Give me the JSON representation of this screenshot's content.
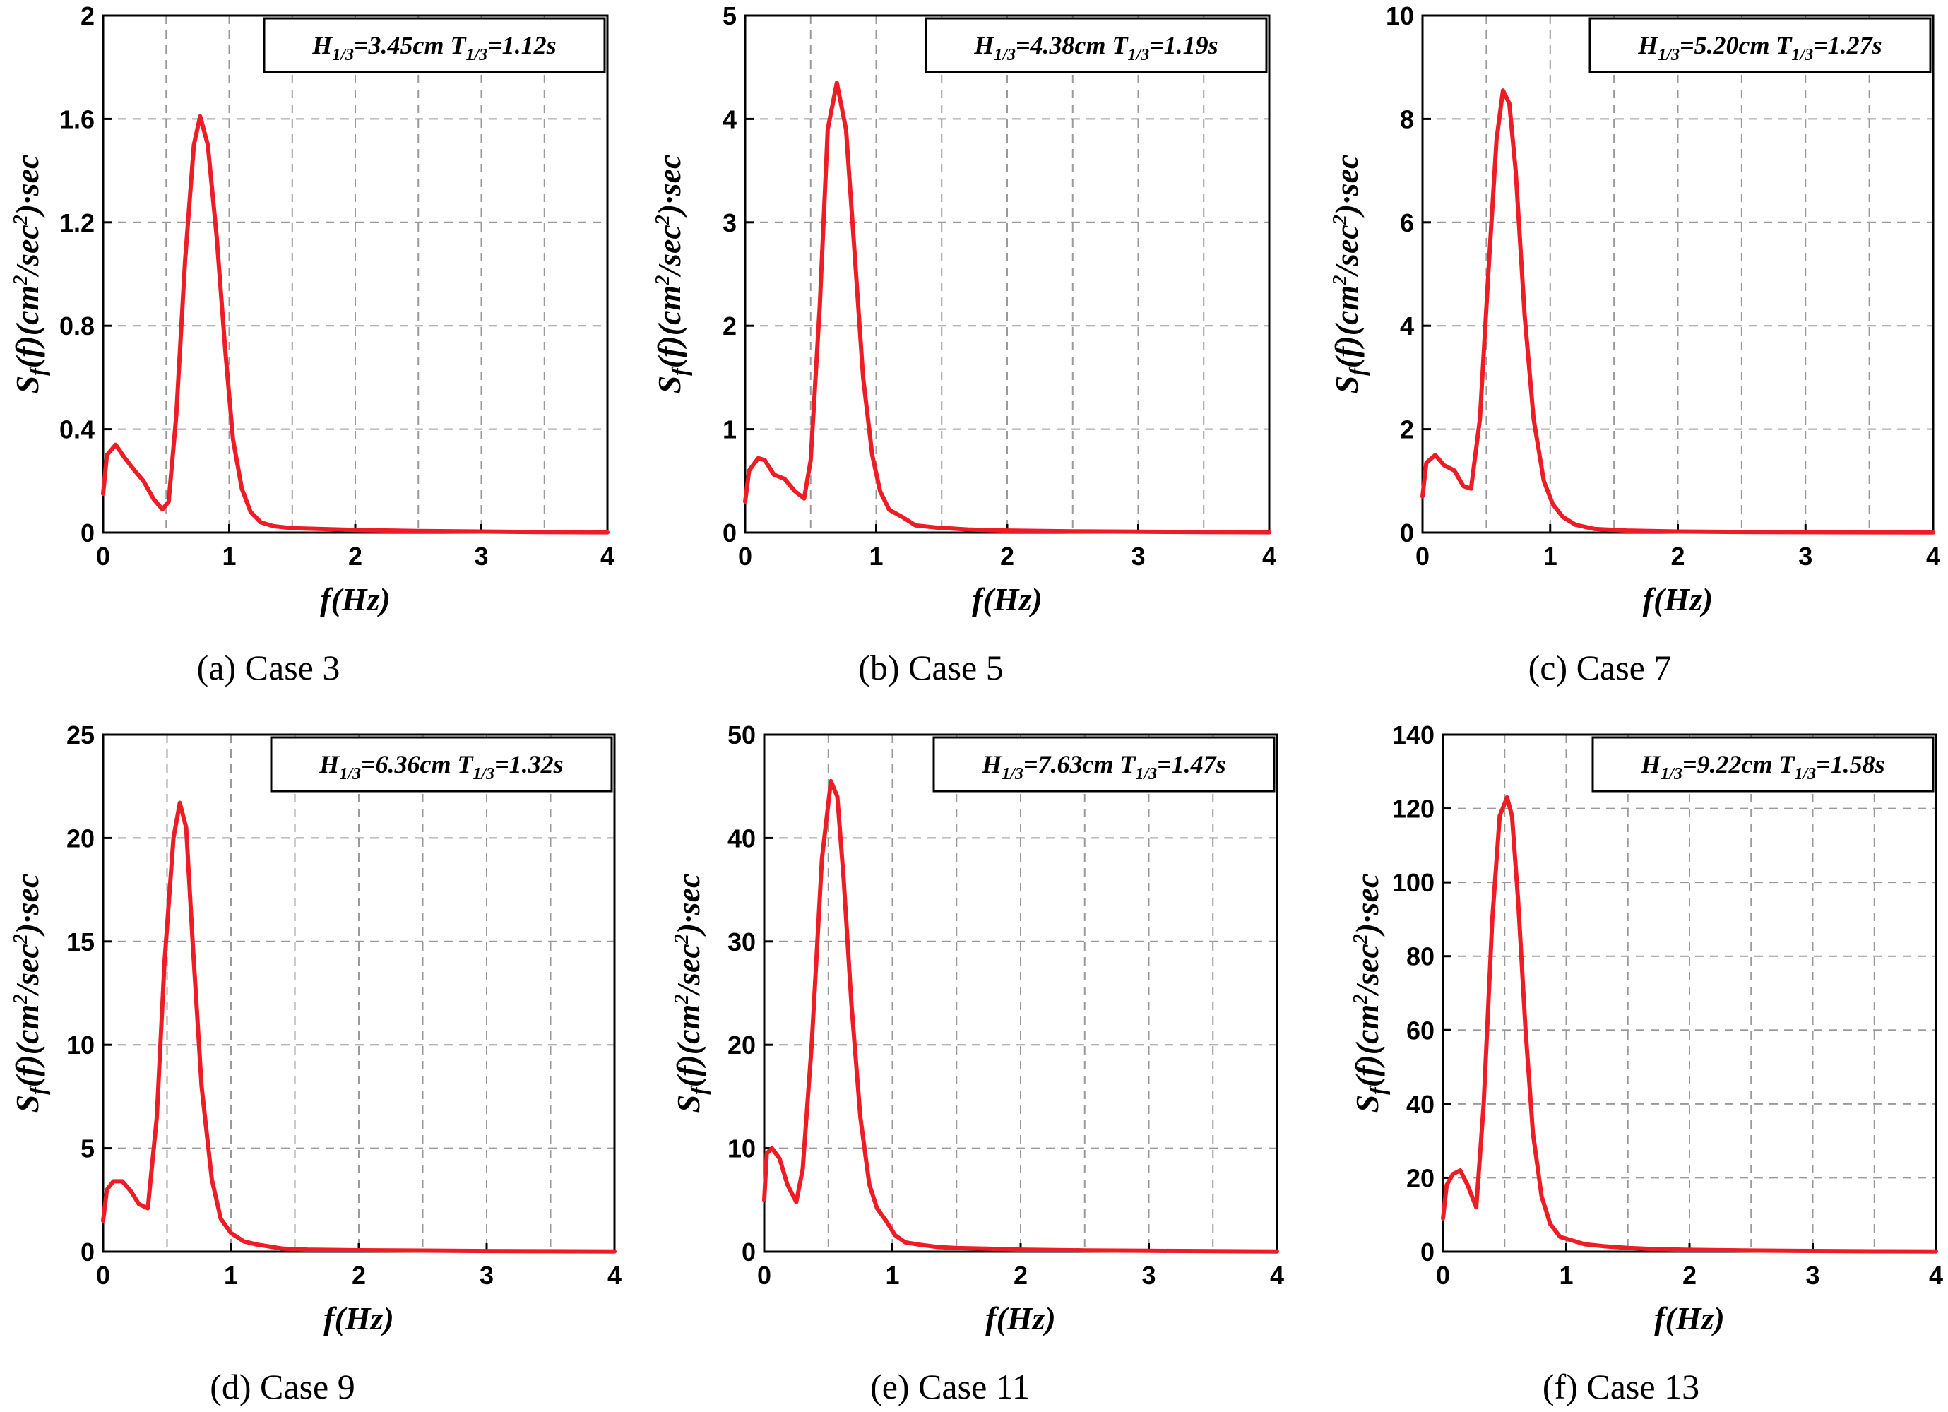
{
  "figure": {
    "series_color": "#ee1c24",
    "xlabel": "f(Hz)",
    "ylabel": "Sf(f)(cm2/sec2)·sec",
    "ylabel_parts": {
      "S": "S",
      "sub": "f",
      "mid": "(f)(cm",
      "sup1": "2",
      "mid2": "/sec",
      "sup2": "2",
      "tail": ")·sec"
    }
  },
  "chart_data": [
    {
      "type": "line",
      "caption": "(a)  Case 3",
      "annotation": {
        "H": "H",
        "Hsub": "1/3",
        "Hval": "=3.45cm ",
        "T": "T",
        "Tsub": "1/3",
        "Tval": "=1.12s"
      },
      "xlabel": "f(Hz)",
      "ylabel": "Sf(f)(cm2/sec2)·sec",
      "xlim": [
        0,
        4
      ],
      "ylim": [
        0,
        2
      ],
      "xticks": [
        0,
        1,
        2,
        3,
        4
      ],
      "xtick_labels": [
        "0",
        "1",
        "2",
        "3",
        "4"
      ],
      "yticks": [
        0,
        0.4,
        0.8,
        1.2,
        1.6,
        2
      ],
      "ytick_labels": [
        "0",
        "0.4",
        "0.8",
        "1.2",
        "1.6",
        "2"
      ],
      "grid": true,
      "series": [
        {
          "x": [
            0,
            0.03,
            0.1,
            0.17,
            0.25,
            0.32,
            0.4,
            0.47,
            0.52,
            0.58,
            0.65,
            0.72,
            0.77,
            0.83,
            0.9,
            0.97,
            1.03,
            1.1,
            1.17,
            1.25,
            1.35,
            1.5,
            2,
            2.5,
            3,
            3.5,
            4
          ],
          "y": [
            0.15,
            0.3,
            0.34,
            0.29,
            0.24,
            0.2,
            0.13,
            0.09,
            0.12,
            0.45,
            1.05,
            1.5,
            1.61,
            1.5,
            1.15,
            0.7,
            0.36,
            0.17,
            0.08,
            0.04,
            0.025,
            0.017,
            0.01,
            0.006,
            0.004,
            0.002,
            0.001
          ]
        }
      ]
    },
    {
      "type": "line",
      "caption": "(b)  Case 5",
      "annotation": {
        "H": "H",
        "Hsub": "1/3",
        "Hval": "=4.38cm ",
        "T": "T",
        "Tsub": "1/3",
        "Tval": "=1.19s"
      },
      "xlabel": "f(Hz)",
      "ylabel": "Sf(f)(cm2/sec2)·sec",
      "xlim": [
        0,
        4
      ],
      "ylim": [
        0,
        5
      ],
      "xticks": [
        0,
        1,
        2,
        3,
        4
      ],
      "xtick_labels": [
        "0",
        "1",
        "2",
        "3",
        "4"
      ],
      "yticks": [
        0,
        1,
        2,
        3,
        4,
        5
      ],
      "ytick_labels": [
        "0",
        "1",
        "2",
        "3",
        "4",
        "5"
      ],
      "grid": true,
      "series": [
        {
          "x": [
            0,
            0.03,
            0.1,
            0.15,
            0.22,
            0.3,
            0.38,
            0.45,
            0.5,
            0.57,
            0.63,
            0.7,
            0.77,
            0.83,
            0.9,
            0.97,
            1.03,
            1.1,
            1.2,
            1.3,
            1.45,
            1.7,
            2,
            2.5,
            3,
            3.5,
            4
          ],
          "y": [
            0.3,
            0.6,
            0.72,
            0.7,
            0.56,
            0.52,
            0.4,
            0.33,
            0.7,
            2.2,
            3.9,
            4.35,
            3.9,
            2.8,
            1.5,
            0.75,
            0.4,
            0.22,
            0.15,
            0.07,
            0.05,
            0.03,
            0.02,
            0.012,
            0.008,
            0.005,
            0.003
          ]
        }
      ]
    },
    {
      "type": "line",
      "caption": "(c)  Case 7",
      "annotation": {
        "H": "H",
        "Hsub": "1/3",
        "Hval": "=5.20cm ",
        "T": "T",
        "Tsub": "1/3",
        "Tval": "=1.27s"
      },
      "xlabel": "f(Hz)",
      "ylabel": "Sf(f)(cm2/sec2)·sec",
      "xlim": [
        0,
        4
      ],
      "ylim": [
        0,
        10
      ],
      "xticks": [
        0,
        1,
        2,
        3,
        4
      ],
      "xtick_labels": [
        "0",
        "1",
        "2",
        "3",
        "4"
      ],
      "yticks": [
        0,
        2,
        4,
        6,
        8,
        10
      ],
      "ytick_labels": [
        "0",
        "2",
        "4",
        "6",
        "8",
        "10"
      ],
      "grid": true,
      "series": [
        {
          "x": [
            0,
            0.03,
            0.1,
            0.17,
            0.25,
            0.32,
            0.38,
            0.45,
            0.52,
            0.58,
            0.63,
            0.68,
            0.73,
            0.8,
            0.87,
            0.95,
            1.02,
            1.1,
            1.2,
            1.35,
            1.6,
            2,
            2.5,
            3,
            3.5,
            4
          ],
          "y": [
            0.7,
            1.35,
            1.5,
            1.3,
            1.2,
            0.9,
            0.85,
            2.2,
            5.2,
            7.6,
            8.55,
            8.3,
            7.0,
            4.2,
            2.2,
            1.0,
            0.55,
            0.3,
            0.15,
            0.07,
            0.04,
            0.02,
            0.012,
            0.008,
            0.005,
            0.003
          ]
        }
      ]
    },
    {
      "type": "line",
      "caption": "(d)  Case 9",
      "annotation": {
        "H": "H",
        "Hsub": "1/3",
        "Hval": "=6.36cm ",
        "T": "T",
        "Tsub": "1/3",
        "Tval": "=1.32s"
      },
      "xlabel": "f(Hz)",
      "ylabel": "Sf(f)(cm2/sec2)·sec",
      "xlim": [
        0,
        4
      ],
      "ylim": [
        0,
        25
      ],
      "xticks": [
        0,
        1,
        2,
        3,
        4
      ],
      "xtick_labels": [
        "0",
        "1",
        "2",
        "3",
        "4"
      ],
      "yticks": [
        0,
        5,
        10,
        15,
        20,
        25
      ],
      "ytick_labels": [
        "0",
        "5",
        "10",
        "15",
        "20",
        "25"
      ],
      "grid": true,
      "series": [
        {
          "x": [
            0,
            0.03,
            0.08,
            0.15,
            0.22,
            0.28,
            0.35,
            0.42,
            0.48,
            0.55,
            0.6,
            0.65,
            0.7,
            0.77,
            0.85,
            0.92,
            1.0,
            1.1,
            1.2,
            1.3,
            1.4,
            1.6,
            2,
            2.5,
            3,
            3.5,
            4
          ],
          "y": [
            1.5,
            3.0,
            3.4,
            3.4,
            2.9,
            2.3,
            2.1,
            6.5,
            14.0,
            20.0,
            21.7,
            20.5,
            15.0,
            8.0,
            3.5,
            1.6,
            0.9,
            0.5,
            0.35,
            0.25,
            0.15,
            0.1,
            0.07,
            0.05,
            0.03,
            0.02,
            0.01
          ]
        }
      ]
    },
    {
      "type": "line",
      "caption": "(e)  Case 11",
      "annotation": {
        "H": "H",
        "Hsub": "1/3",
        "Hval": "=7.63cm ",
        "T": "T",
        "Tsub": "1/3",
        "Tval": "=1.47s"
      },
      "xlabel": "f(Hz)",
      "ylabel": "Sf(f)(cm2/sec2)·sec",
      "xlim": [
        0,
        4
      ],
      "ylim": [
        0,
        50
      ],
      "xticks": [
        0,
        1,
        2,
        3,
        4
      ],
      "xtick_labels": [
        "0",
        "1",
        "2",
        "3",
        "4"
      ],
      "yticks": [
        0,
        10,
        20,
        30,
        40,
        50
      ],
      "ytick_labels": [
        "0",
        "10",
        "20",
        "30",
        "40",
        "50"
      ],
      "grid": true,
      "series": [
        {
          "x": [
            0,
            0.02,
            0.06,
            0.12,
            0.18,
            0.25,
            0.3,
            0.37,
            0.45,
            0.52,
            0.57,
            0.62,
            0.68,
            0.75,
            0.82,
            0.88,
            0.95,
            1.02,
            1.1,
            1.2,
            1.35,
            1.5,
            1.7,
            2,
            2.5,
            3,
            3.5,
            4
          ],
          "y": [
            5.0,
            9.5,
            10.0,
            9.0,
            6.5,
            4.8,
            8.0,
            20.0,
            38.0,
            45.5,
            44.0,
            36.0,
            24.0,
            13.0,
            6.5,
            4.2,
            3.0,
            1.6,
            0.9,
            0.7,
            0.45,
            0.35,
            0.3,
            0.2,
            0.12,
            0.08,
            0.05,
            0.02
          ]
        }
      ]
    },
    {
      "type": "line",
      "caption": "(f)  Case 13",
      "annotation": {
        "H": "H",
        "Hsub": "1/3",
        "Hval": "=9.22cm ",
        "T": "T",
        "Tsub": "1/3",
        "Tval": "=1.58s"
      },
      "xlabel": "f(Hz)",
      "ylabel": "Sf(f)(cm2/sec2)·sec",
      "xlim": [
        0,
        4
      ],
      "ylim": [
        0,
        140
      ],
      "xticks": [
        0,
        1,
        2,
        3,
        4
      ],
      "xtick_labels": [
        "0",
        "1",
        "2",
        "3",
        "4"
      ],
      "yticks": [
        0,
        20,
        40,
        60,
        80,
        100,
        120,
        140
      ],
      "ytick_labels": [
        "0",
        "20",
        "40",
        "60",
        "80",
        "100",
        "120",
        "140"
      ],
      "grid": true,
      "series": [
        {
          "x": [
            0,
            0.03,
            0.08,
            0.14,
            0.2,
            0.27,
            0.33,
            0.4,
            0.46,
            0.52,
            0.56,
            0.61,
            0.67,
            0.73,
            0.8,
            0.87,
            0.95,
            1.05,
            1.15,
            1.3,
            1.5,
            1.7,
            2,
            2.5,
            3,
            3.5,
            4
          ],
          "y": [
            9.0,
            18.0,
            21.0,
            22.0,
            18.0,
            12.0,
            40.0,
            90.0,
            118.0,
            123.0,
            118.0,
            95.0,
            60.0,
            32.0,
            15.0,
            7.5,
            4.0,
            3.0,
            2.0,
            1.5,
            1.0,
            0.7,
            0.5,
            0.3,
            0.2,
            0.1,
            0.05
          ]
        }
      ]
    }
  ]
}
